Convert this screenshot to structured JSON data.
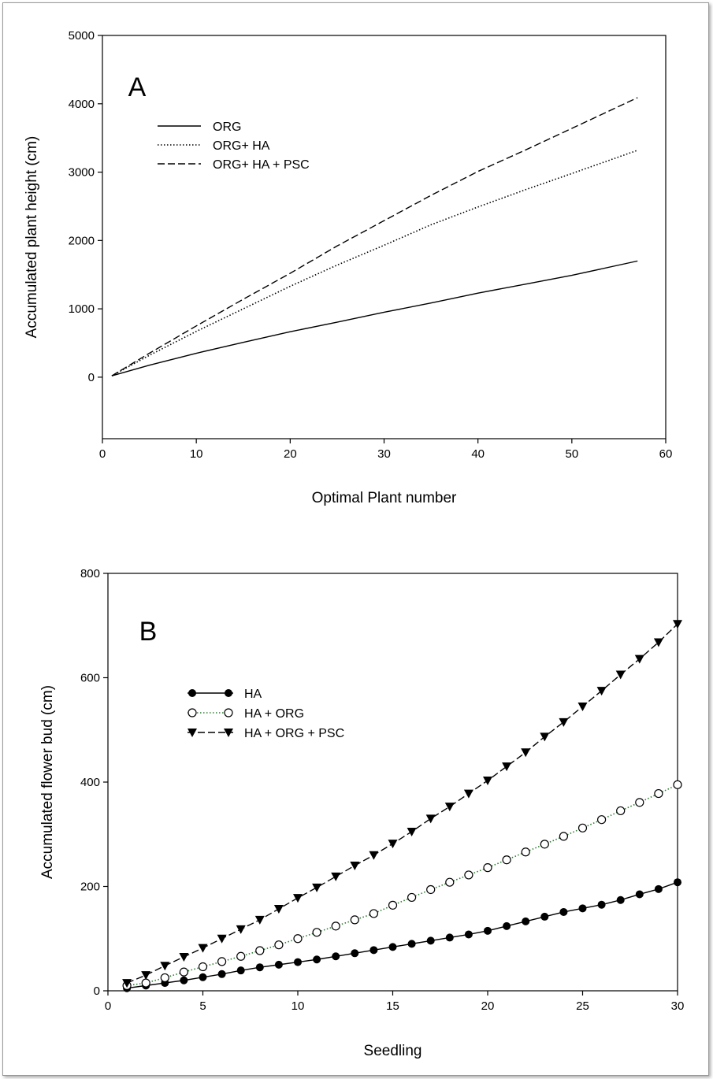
{
  "chart_data": [
    {
      "type": "line",
      "panel_label": "A",
      "xlabel": "Optimal Plant number",
      "ylabel": "Accumulated plant height (cm)",
      "xlim": [
        0,
        60
      ],
      "ylim": [
        -900,
        5000
      ],
      "xticks": [
        "0",
        "10",
        "20",
        "30",
        "40",
        "50",
        "60"
      ],
      "yticks": [
        "0",
        "1000",
        "2000",
        "3000",
        "4000",
        "5000"
      ],
      "grid": false,
      "legend_position": "top-left",
      "series": [
        {
          "name": "ORG",
          "style": "solid",
          "x": [
            1,
            5,
            10,
            15,
            20,
            25,
            30,
            35,
            40,
            45,
            50,
            57
          ],
          "y": [
            20,
            175,
            350,
            510,
            665,
            805,
            950,
            1085,
            1230,
            1360,
            1490,
            1700
          ]
        },
        {
          "name": "ORG+ HA",
          "style": "dotted",
          "x": [
            1,
            5,
            10,
            15,
            20,
            25,
            30,
            35,
            40,
            45,
            50,
            57
          ],
          "y": [
            20,
            320,
            670,
            1000,
            1330,
            1640,
            1930,
            2230,
            2490,
            2740,
            2980,
            3320
          ]
        },
        {
          "name": "ORG+ HA + PSC",
          "style": "dashed",
          "x": [
            1,
            5,
            10,
            15,
            20,
            25,
            30,
            35,
            40,
            45,
            50,
            57
          ],
          "y": [
            20,
            350,
            750,
            1140,
            1520,
            1920,
            2290,
            2660,
            3010,
            3320,
            3640,
            4090
          ]
        }
      ]
    },
    {
      "type": "line",
      "panel_label": "B",
      "xlabel": "Seedling",
      "ylabel": "Accumulated flower bud (cm)",
      "xlim": [
        0,
        30
      ],
      "ylim": [
        0,
        800
      ],
      "xticks": [
        "0",
        "5",
        "10",
        "15",
        "20",
        "25",
        "30"
      ],
      "yticks": [
        "0",
        "200",
        "400",
        "600",
        "800"
      ],
      "grid": false,
      "legend_position": "top-left",
      "x": [
        1,
        2,
        3,
        4,
        5,
        6,
        7,
        8,
        9,
        10,
        11,
        12,
        13,
        14,
        15,
        16,
        17,
        18,
        19,
        20,
        21,
        22,
        23,
        24,
        25,
        26,
        27,
        28,
        29,
        30
      ],
      "series": [
        {
          "name": "HA",
          "style": "solid",
          "marker": "filled-circle",
          "y": [
            5,
            10,
            15,
            20,
            26,
            32,
            39,
            45,
            50,
            55,
            60,
            66,
            72,
            78,
            84,
            90,
            96,
            102,
            108,
            115,
            124,
            133,
            142,
            151,
            158,
            165,
            174,
            185,
            195,
            208
          ]
        },
        {
          "name": "HA + ORG",
          "style": "dotted",
          "color": "#2e7d32",
          "marker": "open-circle",
          "y": [
            10,
            15,
            25,
            36,
            46,
            56,
            66,
            77,
            88,
            100,
            112,
            124,
            136,
            148,
            164,
            179,
            194,
            208,
            222,
            236,
            251,
            266,
            281,
            296,
            312,
            328,
            345,
            361,
            378,
            395
          ]
        },
        {
          "name": "HA + ORG + PSC",
          "style": "dashed",
          "marker": "filled-triangle-down",
          "y": [
            15,
            30,
            48,
            65,
            82,
            100,
            118,
            136,
            157,
            178,
            198,
            219,
            240,
            260,
            282,
            305,
            330,
            353,
            378,
            403,
            430,
            457,
            487,
            515,
            545,
            575,
            606,
            636,
            668,
            703
          ]
        }
      ]
    }
  ]
}
